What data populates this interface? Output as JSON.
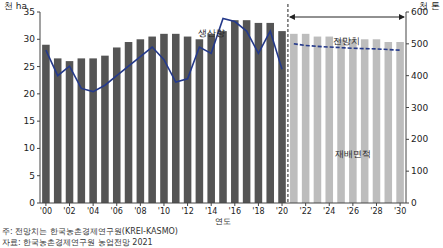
{
  "chart_data": {
    "type": "bar",
    "y_label": "천 ha",
    "y2_label": "천 톤",
    "x_label": "연도",
    "notes": [
      "주: 전망치는 한국농촌경제연구원(KREI-KASMO)",
      "자료: 한국농촌경제연구원 농업전망 2021"
    ],
    "categories": [
      "'00",
      null,
      "'02",
      null,
      "'04",
      null,
      "'06",
      null,
      "'08",
      null,
      "'10",
      null,
      "'12",
      null,
      "'14",
      null,
      "'16",
      null,
      "'18",
      null,
      "'20",
      null,
      "'22",
      null,
      "'24",
      null,
      "'26",
      null,
      "'28",
      null,
      "'30"
    ],
    "series": [
      {
        "name": "재배면적",
        "type": "bar",
        "colors": [
          "#555555",
          "#555555",
          "#555555",
          "#555555",
          "#555555",
          "#555555",
          "#555555",
          "#555555",
          "#555555",
          "#555555",
          "#555555",
          "#555555",
          "#555555",
          "#555555",
          "#555555",
          "#555555",
          "#555555",
          "#555555",
          "#555555",
          "#555555",
          "#555555",
          "#bdbdbd",
          "#bdbdbd",
          "#bdbdbd",
          "#bdbdbd",
          "#bdbdbd",
          "#bdbdbd",
          "#bdbdbd",
          "#bdbdbd",
          "#bdbdbd",
          "#bdbdbd"
        ],
        "values": [
          29,
          26.5,
          26,
          26.5,
          26.5,
          27,
          28.5,
          29.5,
          30,
          30.5,
          31,
          31,
          30.5,
          30,
          31,
          31.5,
          33.5,
          33.5,
          33,
          33,
          31.5,
          31,
          31,
          30.5,
          30.5,
          30,
          30,
          30,
          30,
          29.5,
          29.5
        ]
      },
      {
        "name": "생산량",
        "type": "line",
        "axis": "y2",
        "color": "#24398a",
        "line_style": "solid",
        "values": [
          480,
          400,
          430,
          360,
          350,
          370,
          400,
          430,
          460,
          490,
          450,
          380,
          390,
          490,
          470,
          580,
          570,
          540,
          470,
          540,
          420,
          null,
          null,
          null,
          null,
          null,
          null,
          null,
          null,
          null,
          null
        ]
      },
      {
        "name": "전망치",
        "type": "line",
        "axis": "y2",
        "color": "#24398a",
        "line_style": "dashed",
        "values": [
          null,
          null,
          null,
          null,
          null,
          null,
          null,
          null,
          null,
          null,
          null,
          null,
          null,
          null,
          null,
          null,
          null,
          null,
          null,
          null,
          null,
          500,
          495,
          492,
          490,
          488,
          486,
          485,
          484,
          482,
          480
        ]
      }
    ],
    "ylim": [
      0,
      35
    ],
    "yticks": [
      0,
      5,
      10,
      15,
      20,
      25,
      30,
      35
    ],
    "y2lim": [
      0,
      600
    ],
    "y2ticks": [
      0,
      100,
      200,
      300,
      400,
      500,
      600
    ],
    "grid": false
  }
}
